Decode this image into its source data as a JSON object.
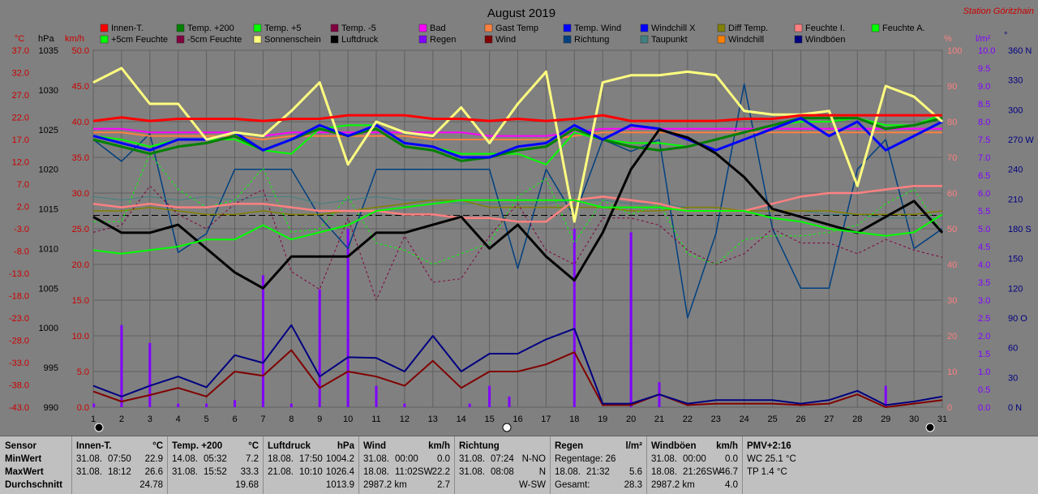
{
  "colors": {
    "bg": "#808080",
    "grid": "#606060",
    "left_axis_red": "#cc0000",
    "right_axis_pink": "#ff7f7f",
    "right_axis_violet": "#8000ff",
    "right_axis_navy": "#000080",
    "title": "#000000",
    "station": "#cc0000"
  },
  "header": {
    "title": "August 2019",
    "station": "Station Göritzhain",
    "unit_degc": "°C",
    "unit_hpa": "hPa",
    "unit_kmh": "km/h",
    "unit_pct": "%",
    "unit_lm2": "l/m²",
    "unit_deg": "°"
  },
  "legend": [
    {
      "label": "Innen-T.",
      "color": "#ff0000"
    },
    {
      "label": "Temp. +200",
      "color": "#008000"
    },
    {
      "label": "Temp. +5",
      "color": "#00ff00"
    },
    {
      "label": "Temp. -5",
      "color": "#800040"
    },
    {
      "label": "Bad",
      "color": "#ff00ff"
    },
    {
      "label": "Gast Temp",
      "color": "#ff8040"
    },
    {
      "label": "Temp. Wind",
      "color": "#0000ff"
    },
    {
      "label": "Windchill X",
      "color": "#0000ff"
    },
    {
      "label": "Diff Temp.",
      "color": "#808000"
    },
    {
      "label": "Feuchte I.",
      "color": "#ff8080"
    },
    {
      "label": "Feuchte A.",
      "color": "#00ff00"
    },
    {
      "label": "+5cm Feuchte",
      "color": "#00ff00"
    },
    {
      "label": "-5cm Feuchte",
      "color": "#800040"
    },
    {
      "label": "Sonnenschein",
      "color": "#ffff80"
    },
    {
      "label": "Luftdruck",
      "color": "#000000"
    },
    {
      "label": "Regen",
      "color": "#8000ff"
    },
    {
      "label": "Wind",
      "color": "#800000"
    },
    {
      "label": "Richtung",
      "color": "#004080"
    },
    {
      "label": "Taupunkt",
      "color": "#408080"
    },
    {
      "label": "Windchill",
      "color": "#ff8000"
    },
    {
      "label": "Windböen",
      "color": "#000080"
    }
  ],
  "axes": {
    "left_degc": [
      "37.0",
      "32.0",
      "27.0",
      "22.0",
      "17.0",
      "12.0",
      "7.0",
      "2.0",
      "-3.0",
      "-8.0",
      "-13.0",
      "-18.0",
      "-23.0",
      "-28.0",
      "-33.0",
      "-38.0",
      "-43.0"
    ],
    "left_hpa": [
      "1035",
      "1030",
      "1025",
      "1020",
      "1015",
      "1010",
      "1005",
      "1000",
      "995",
      "990"
    ],
    "left_kmh": [
      "50.0",
      "45.0",
      "40.0",
      "35.0",
      "30.0",
      "25.0",
      "20.0",
      "15.0",
      "10.0",
      "5.0",
      "0.0"
    ],
    "right_pct": [
      "100",
      "90",
      "80",
      "70",
      "60",
      "50",
      "40",
      "30",
      "20",
      "10",
      "0"
    ],
    "right_lm2": [
      "10.0",
      "9.5",
      "9.0",
      "8.5",
      "8.0",
      "7.5",
      "7.0",
      "6.5",
      "6.0",
      "5.5",
      "5.0",
      "4.5",
      "4.0",
      "3.5",
      "3.0",
      "2.5",
      "2.0",
      "1.5",
      "1.0",
      "0.5",
      "0.0"
    ],
    "right_dir": [
      "360 N",
      "330",
      "300",
      "270 W",
      "240",
      "210",
      "180 S",
      "150",
      "120",
      "90 O",
      "60",
      "30",
      "0 N"
    ],
    "days": [
      "1",
      "2",
      "3",
      "4",
      "5",
      "6",
      "7",
      "8",
      "9",
      "10",
      "11",
      "12",
      "13",
      "14",
      "15",
      "16",
      "17",
      "18",
      "19",
      "20",
      "21",
      "22",
      "23",
      "24",
      "25",
      "26",
      "27",
      "28",
      "29",
      "30",
      "31"
    ]
  },
  "chart_data": {
    "type": "line",
    "title": "August 2019",
    "x": [
      1,
      2,
      3,
      4,
      5,
      6,
      7,
      8,
      9,
      10,
      11,
      12,
      13,
      14,
      15,
      16,
      17,
      18,
      19,
      20,
      21,
      22,
      23,
      24,
      25,
      26,
      27,
      28,
      29,
      30,
      31
    ],
    "xlim": [
      1,
      31
    ],
    "ylim_kmh": [
      0,
      50
    ],
    "ylim_degc": [
      -43,
      37
    ],
    "ylim_hpa": [
      990,
      1035
    ],
    "ylim_pct": [
      0,
      100
    ],
    "ylim_lm2": [
      0,
      10
    ],
    "ylim_dir": [
      0,
      360
    ],
    "reference_line_degc": 0,
    "series": [
      {
        "name": "Innen-T.",
        "axis": "kmh",
        "color": "#ff0000",
        "width": 3,
        "values": [
          40.1,
          40.6,
          40.1,
          40.4,
          40.4,
          40.4,
          40.1,
          40.4,
          40.4,
          40.9,
          40.9,
          40.9,
          40.4,
          40.4,
          40.1,
          40.4,
          40.1,
          40.4,
          40.9,
          40.1,
          40.1,
          40.1,
          40.1,
          40.4,
          40.4,
          40.9,
          40.9,
          40.9,
          40.9,
          40.9,
          40.9
        ]
      },
      {
        "name": "Feuchte A.",
        "axis": "pct",
        "color": "#00ff00",
        "width": 2,
        "values": [
          44,
          43,
          44,
          45,
          47,
          47,
          51,
          47,
          49,
          51,
          55,
          56,
          57,
          58,
          58,
          58,
          58,
          58,
          56,
          56,
          56,
          55,
          55,
          55,
          53,
          52,
          50,
          49,
          48,
          49,
          54
        ]
      },
      {
        "name": "Sonnenschein",
        "axis": "kmh",
        "color": "#ffff80",
        "width": 3,
        "values": [
          45.5,
          47.5,
          42.5,
          42.5,
          37.5,
          38.5,
          38.0,
          41.5,
          45.5,
          34.0,
          40.0,
          38.5,
          38.0,
          42.0,
          37.0,
          42.5,
          47.0,
          26.0,
          45.5,
          46.5,
          46.5,
          47.0,
          46.5,
          41.5,
          41.0,
          41.0,
          41.5,
          31.0,
          45.0,
          43.5,
          40.0
        ]
      },
      {
        "name": "Luftdruck",
        "axis": "hpa",
        "color": "#000000",
        "width": 3,
        "values": [
          1014,
          1012,
          1012,
          1013,
          1010,
          1007,
          1005,
          1009,
          1009,
          1009,
          1012,
          1012,
          1013,
          1014,
          1010,
          1013,
          1009,
          1006,
          1012,
          1020,
          1025,
          1024,
          1022,
          1019,
          1015,
          1014,
          1013,
          1012,
          1014,
          1016,
          1012
        ]
      },
      {
        "name": "Temp. Wind",
        "axis": "kmh",
        "color": "#0000ff",
        "width": 3,
        "values": [
          38.0,
          37.0,
          36.0,
          37.5,
          37.5,
          38.5,
          36.0,
          37.5,
          39.5,
          38.0,
          39.5,
          37.0,
          36.5,
          35.0,
          35.0,
          36.5,
          37.0,
          39.5,
          37.5,
          39.5,
          39.0,
          37.5,
          36.0,
          37.5,
          39.0,
          40.5,
          38.0,
          40.0,
          36.0,
          38.0,
          40.0
        ]
      },
      {
        "name": "Temp. +200",
        "axis": "kmh",
        "color": "#008000",
        "width": 3,
        "values": [
          37.5,
          36.5,
          35.5,
          36.5,
          37.0,
          38.0,
          36.0,
          37.5,
          39.0,
          38.0,
          39.0,
          36.5,
          36.0,
          34.5,
          35.0,
          36.0,
          36.5,
          39.0,
          37.5,
          36.5,
          36.0,
          36.5,
          37.5,
          38.5,
          39.5,
          40.5,
          40.5,
          40.5,
          39.0,
          39.5,
          40.5
        ]
      },
      {
        "name": "Temp. +5",
        "axis": "kmh",
        "color": "#00ff00",
        "width": 2,
        "values": [
          38.0,
          37.5,
          36.5,
          37.5,
          37.5,
          37.5,
          36.0,
          35.5,
          39.0,
          39.5,
          39.5,
          37.0,
          36.5,
          35.5,
          35.5,
          35.5,
          34.0,
          38.5,
          37.5,
          37.0,
          37.0,
          36.5,
          37.5,
          38.5,
          39.5,
          40.0,
          40.0,
          40.5,
          39.5,
          39.5,
          41.0
        ]
      },
      {
        "name": "Feuchte I.",
        "axis": "pct",
        "color": "#ff8080",
        "width": 2.5,
        "values": [
          57,
          56,
          57,
          56,
          56,
          57,
          57,
          56,
          55,
          55,
          55,
          54,
          54,
          53,
          53,
          52,
          52,
          58,
          59,
          58,
          57,
          55,
          55,
          55,
          57,
          59,
          60,
          60,
          61,
          62,
          62
        ]
      },
      {
        "name": "Bad",
        "axis": "kmh",
        "color": "#ff00ff",
        "width": 2,
        "values": [
          39.0,
          39.0,
          38.5,
          38.5,
          38.5,
          38.5,
          38.0,
          38.5,
          38.5,
          38.5,
          38.5,
          38.5,
          38.5,
          38.5,
          38.0,
          38.0,
          38.0,
          38.5,
          39.0,
          39.0,
          39.0,
          39.0,
          39.0,
          39.0,
          39.0,
          39.0,
          39.0,
          39.0,
          39.0,
          39.0,
          39.0
        ]
      },
      {
        "name": "Gast Temp",
        "axis": "kmh",
        "color": "#ff8040",
        "width": 2,
        "values": [
          38.5,
          38.5,
          38.0,
          38.0,
          38.0,
          38.0,
          37.5,
          38.0,
          38.0,
          38.0,
          38.0,
          38.0,
          37.5,
          37.5,
          37.5,
          37.5,
          37.5,
          38.0,
          38.5,
          38.5,
          38.5,
          38.5,
          38.5,
          38.5,
          38.5,
          38.5,
          38.5,
          38.5,
          38.5,
          38.5,
          38.5
        ]
      },
      {
        "name": "Temp. -5",
        "axis": "kmh",
        "color": "#800040",
        "width": 1,
        "dash": "3,3",
        "values": [
          24.5,
          25.5,
          31.0,
          27.0,
          25.0,
          28.5,
          30.5,
          19.0,
          16.5,
          26.5,
          15.0,
          24.0,
          17.5,
          18.0,
          24.0,
          28.5,
          22.0,
          20.0,
          26.5,
          26.5,
          25.5,
          22.0,
          20.0,
          21.5,
          25.0,
          23.0,
          23.0,
          21.5,
          23.5,
          22.0,
          21.0
        ]
      },
      {
        "name": "+5cm Feuchte",
        "axis": "kmh",
        "color": "#00ff00",
        "width": 1,
        "dash": "3,3",
        "values": [
          26.0,
          26.0,
          35.5,
          30.5,
          28.0,
          29.0,
          33.5,
          24.5,
          25.0,
          29.5,
          23.0,
          22.0,
          20.0,
          21.5,
          23.0,
          29.5,
          32.0,
          23.0,
          29.0,
          27.0,
          28.5,
          21.5,
          20.0,
          23.5,
          24.0,
          24.0,
          24.5,
          25.5,
          28.5,
          30.5,
          24.5
        ]
      },
      {
        "name": "Diff Temp.",
        "axis": "kmh",
        "color": "#808000",
        "width": 1.5,
        "values": [
          27.5,
          27.5,
          28.0,
          27.5,
          27.0,
          27.0,
          27.5,
          27.0,
          27.0,
          27.5,
          28.0,
          28.5,
          29.0,
          29.0,
          28.0,
          28.0,
          28.0,
          28.0,
          28.0,
          27.5,
          27.5,
          28.0,
          28.0,
          27.5,
          27.5,
          27.5,
          27.5,
          27.0,
          27.0,
          27.0,
          27.5
        ]
      },
      {
        "name": "Taupunkt",
        "axis": "kmh",
        "color": "#408080",
        "width": 1,
        "values": [
          29.5,
          29.0,
          29.5,
          29.0,
          29.5,
          29.0,
          29.5,
          29.5,
          28.5,
          29.0,
          29.5,
          29.0,
          29.0,
          28.5,
          28.5,
          28.5,
          28.5,
          29.0,
          29.0,
          28.5,
          28.5,
          28.0,
          28.0,
          27.5,
          27.5,
          27.5,
          27.0,
          27.0,
          26.5,
          26.5,
          26.5
        ]
      },
      {
        "name": "Richtung",
        "axis": "dir",
        "color": "#004080",
        "width": 1.5,
        "values": [
          270,
          248,
          276,
          156,
          175,
          240,
          240,
          240,
          192,
          160,
          240,
          240,
          240,
          240,
          240,
          140,
          240,
          192,
          270,
          258,
          270,
          90,
          175,
          326,
          180,
          120,
          120,
          240,
          270,
          160,
          180
        ]
      },
      {
        "name": "Windböen",
        "axis": "kmh",
        "color": "#000080",
        "width": 2,
        "values": [
          3.0,
          1.5,
          3.0,
          4.3,
          2.8,
          7.3,
          6.2,
          11.5,
          4.3,
          7.0,
          6.9,
          5.0,
          10.0,
          5.0,
          7.5,
          7.5,
          9.5,
          11.0,
          0.5,
          0.5,
          1.8,
          0.5,
          1.0,
          1.0,
          1.0,
          0.5,
          1.0,
          2.3,
          0.3,
          0.8,
          1.5
        ]
      },
      {
        "name": "Wind",
        "axis": "kmh",
        "color": "#800000",
        "width": 2,
        "values": [
          2.2,
          0.8,
          1.7,
          2.7,
          1.5,
          5.0,
          4.4,
          8.0,
          2.7,
          5.0,
          4.3,
          3.0,
          6.5,
          2.7,
          5.0,
          5.0,
          6.0,
          7.7,
          0.3,
          0.3,
          1.8,
          0.3,
          0.5,
          0.5,
          0.5,
          0.3,
          0.5,
          1.8,
          0.0,
          0.5,
          1.0
        ]
      }
    ],
    "rain_bars": {
      "name": "Regen",
      "axis": "lm2",
      "color": "#8000ff",
      "days": [
        1.02,
        2,
        3,
        4,
        5,
        6,
        7,
        8,
        9,
        10,
        11,
        12,
        14.3,
        15,
        15.7,
        18,
        20,
        21,
        29
      ],
      "values": [
        0.1,
        2.3,
        1.8,
        0.1,
        0.1,
        0.2,
        3.7,
        0.1,
        3.3,
        5.0,
        0.6,
        0.1,
        0.1,
        0.6,
        0.3,
        5.0,
        4.9,
        0.7,
        0.6
      ]
    }
  },
  "stats": {
    "row_labels": {
      "sensor": "Sensor",
      "min": "MinWert",
      "max": "MaxWert",
      "avg": "Durchschnitt"
    },
    "panels": [
      {
        "title": "Innen-T.",
        "unit": "°C",
        "min_date": "31.08.",
        "min_time": "07:50",
        "min_val": "22.9",
        "max_date": "31.08.",
        "max_time": "18:12",
        "max_val": "26.6",
        "avg_left": "",
        "avg_val": "24.78"
      },
      {
        "title": "Temp. +200",
        "unit": "°C",
        "min_date": "14.08.",
        "min_time": "05:32",
        "min_val": "7.2",
        "max_date": "31.08.",
        "max_time": "15:52",
        "max_val": "33.3",
        "avg_left": "",
        "avg_val": "19.68"
      },
      {
        "title": "Luftdruck",
        "unit": "hPa",
        "min_date": "18.08.",
        "min_time": "17:50",
        "min_val": "1004.2",
        "max_date": "21.08.",
        "max_time": "10:10",
        "max_val": "1026.4",
        "avg_left": "",
        "avg_val": "1013.9"
      },
      {
        "title": "Wind",
        "unit": "km/h",
        "min_date": "31.08.",
        "min_time": "00:00",
        "min_val": "0.0",
        "max_date": "18.08.",
        "max_time": "11:02SW",
        "max_val": "22.2",
        "avg_left": "2987.2 km",
        "avg_val": "2.7"
      },
      {
        "title": "Richtung",
        "unit": "",
        "min_date": "31.08.",
        "min_time": "07:24",
        "min_val": "N-NO",
        "max_date": "31.08.",
        "max_time": "08:08",
        "max_val": "N",
        "avg_left": "",
        "avg_val": "W-SW"
      },
      {
        "title": "Regen",
        "unit": "l/m²",
        "min_date": "Regentage: 26",
        "min_time": "",
        "min_val": "",
        "max_date": "18.08.",
        "max_time": "21:32",
        "max_val": "5.6",
        "avg_left": "Gesamt:",
        "avg_val": "28.3"
      },
      {
        "title": "Windböen",
        "unit": "km/h",
        "min_date": "31.08.",
        "min_time": "00:00",
        "min_val": "0.0",
        "max_date": "18.08.",
        "max_time": "21:26SW",
        "max_val": "46.7",
        "avg_left": "2987.2 km",
        "avg_val": "4.0"
      },
      {
        "title": "PMV+2:16",
        "unit": "",
        "min_date": "WC 25.1 °C",
        "min_time": "",
        "min_val": "",
        "max_date": "TP 1.4 °C",
        "max_time": "",
        "max_val": "",
        "avg_left": "",
        "avg_val": ""
      }
    ]
  }
}
